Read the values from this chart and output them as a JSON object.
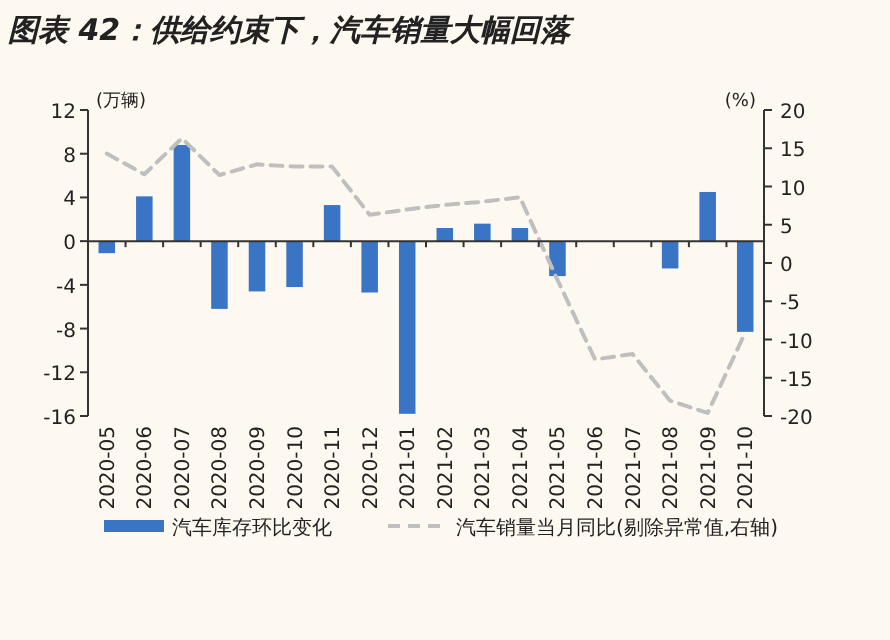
{
  "chart_data": {
    "type": "bar",
    "title": "图表 42：供给约束下，汽车销量大幅回落",
    "ylabel": "(万辆)",
    "y2label": "(%)",
    "categories": [
      "2020-05",
      "2020-06",
      "2020-07",
      "2020-08",
      "2020-09",
      "2020-10",
      "2020-11",
      "2020-12",
      "2021-01",
      "2021-02",
      "2021-03",
      "2021-04",
      "2021-05",
      "2021-06",
      "2021-07",
      "2021-08",
      "2021-09",
      "2021-10"
    ],
    "series": [
      {
        "name": "汽车库存环比变化",
        "color": "#3a74c4",
        "values": [
          -1.1,
          4.1,
          8.8,
          -6.2,
          -4.6,
          -4.2,
          3.3,
          -4.7,
          -15.8,
          1.2,
          1.6,
          1.2,
          -3.2,
          null,
          null,
          -2.5,
          4.5,
          -8.3
        ]
      },
      {
        "name": "汽车销量当月同比(剔除异常值,右轴)",
        "type": "line",
        "axis": "y2",
        "line_style": "dashed",
        "color": "#bfbfbf",
        "values": [
          14.3,
          11.6,
          16.3,
          11.5,
          12.9,
          12.6,
          12.6,
          6.3,
          7.0,
          7.6,
          8.0,
          8.6,
          -2.2,
          -12.6,
          -11.9,
          -18.0,
          -19.6,
          -9.1
        ]
      }
    ],
    "ylim": [
      -16,
      12
    ],
    "yticks": [
      -16,
      -12,
      -8,
      -4,
      0,
      4,
      8,
      12
    ],
    "y2lim": [
      -20,
      20
    ],
    "y2ticks": [
      -20,
      -15,
      -10,
      -5,
      0,
      5,
      10,
      15,
      20
    ],
    "legend": "bottom"
  }
}
